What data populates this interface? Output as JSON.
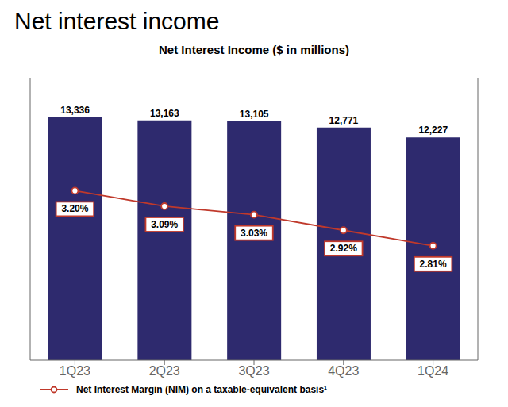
{
  "chart_data": {
    "type": "bar",
    "title": "Net interest income",
    "subtitle": "Net Interest Income ($ in millions)",
    "categories": [
      "1Q23",
      "2Q23",
      "3Q23",
      "4Q23",
      "1Q24"
    ],
    "series": [
      {
        "type": "bar",
        "color": "#2E2A6E",
        "values": [
          13336,
          13163,
          13105,
          12771,
          12227
        ],
        "value_labels": [
          "13,336",
          "13,163",
          "13,105",
          "12,771",
          "12,227"
        ]
      },
      {
        "type": "line",
        "name": "Net Interest Margin (NIM) on a taxable-equivalent basis¹",
        "color": "#C0392B",
        "marker": "circle",
        "axis": "y2",
        "values": [
          3.2,
          3.09,
          3.03,
          2.92,
          2.81
        ],
        "value_labels": [
          "3.20%",
          "3.09%",
          "3.03%",
          "2.92%",
          "2.81%"
        ]
      }
    ],
    "ylim": [
      0,
      15500
    ],
    "y2lim": [
      2,
      4
    ],
    "tick_labels": "x",
    "data_labels": true,
    "legend": "bottom",
    "grid": false
  }
}
